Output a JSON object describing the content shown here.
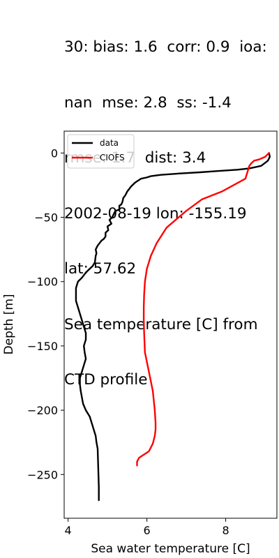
{
  "title_lines": [
    "30: bias: 1.6  corr: 0.9  ioa:",
    "nan  mse: 2.8  ss: -1.4",
    "rmse: 1.7  dist: 3.4",
    "2002-08-19 lon: -155.19",
    "lat: 57.62",
    "Sea temperature [C] from",
    "CTD profile"
  ],
  "chart_data": {
    "type": "line",
    "title": "30: bias: 1.6  corr: 0.9  ioa: nan  mse: 2.8  ss: -1.4  rmse: 1.7  dist: 3.4  2002-08-19 lon: -155.19  lat: 57.62  Sea temperature [C] from CTD profile",
    "xlabel": "Sea water temperature [C]",
    "ylabel": "Depth [m]",
    "xlim": [
      3.9,
      9.3
    ],
    "ylim": [
      -284,
      17
    ],
    "xticks": [
      4,
      6,
      8
    ],
    "yticks": [
      0,
      -50,
      -100,
      -150,
      -200,
      -250
    ],
    "legend_position": "top-left",
    "grid": false,
    "series": [
      {
        "name": "data",
        "color": "#000000",
        "x": [
          9.1,
          9.12,
          9.07,
          8.9,
          8.6,
          8.3,
          7.8,
          7.35,
          6.8,
          6.35,
          6.1,
          6.0,
          5.85,
          5.7,
          5.6,
          5.5,
          5.45,
          5.4,
          5.38,
          5.35,
          5.3,
          5.3,
          5.2,
          5.15,
          5.12,
          5.05,
          5.1,
          5.0,
          5.02,
          4.95,
          4.95,
          4.9,
          4.85,
          4.8,
          4.75,
          4.7,
          4.72,
          4.7,
          4.68,
          4.62,
          4.55,
          4.45,
          4.35,
          4.25,
          4.2,
          4.2,
          4.2,
          4.25,
          4.3,
          4.35,
          4.4,
          4.45,
          4.45,
          4.4,
          4.42,
          4.45,
          4.4,
          4.35,
          4.3,
          4.3,
          4.32,
          4.35,
          4.38,
          4.45,
          4.55,
          4.6,
          4.7,
          4.72,
          4.75,
          4.76,
          4.77,
          4.78,
          4.78
        ],
        "y": [
          0,
          -3,
          -6,
          -10,
          -12,
          -13,
          -14,
          -15,
          -16,
          -17,
          -18,
          -19,
          -20,
          -23,
          -26,
          -30,
          -33,
          -35,
          -38,
          -40,
          -41,
          -44,
          -45,
          -48,
          -50,
          -52,
          -55,
          -57,
          -60,
          -62,
          -65,
          -67,
          -68,
          -70,
          -72,
          -75,
          -78,
          -80,
          -85,
          -88,
          -90,
          -93,
          -97,
          -100,
          -105,
          -110,
          -115,
          -120,
          -125,
          -130,
          -135,
          -140,
          -145,
          -150,
          -155,
          -160,
          -165,
          -170,
          -175,
          -180,
          -185,
          -190,
          -195,
          -200,
          -205,
          -210,
          -220,
          -225,
          -230,
          -240,
          -250,
          -260,
          -270
        ]
      },
      {
        "name": "CIOFS",
        "color": "#ff0000",
        "x": [
          9.1,
          9.0,
          8.85,
          8.72,
          8.65,
          8.6,
          8.55,
          8.5,
          8.2,
          7.9,
          7.4,
          7.0,
          6.5,
          6.25,
          6.1,
          6.0,
          5.95,
          5.93,
          5.92,
          5.92,
          5.93,
          5.95,
          6.05,
          6.15,
          6.2,
          6.22,
          6.22,
          6.2,
          6.15,
          6.05,
          5.9,
          5.8,
          5.75,
          5.75
        ],
        "y": [
          0,
          -3,
          -5,
          -6,
          -8,
          -10,
          -15,
          -20,
          -25,
          -30,
          -36,
          -45,
          -58,
          -70,
          -80,
          -90,
          -100,
          -110,
          -120,
          -130,
          -140,
          -155,
          -170,
          -185,
          -200,
          -210,
          -215,
          -220,
          -226,
          -232,
          -235,
          -237,
          -240,
          -243
        ]
      }
    ]
  }
}
